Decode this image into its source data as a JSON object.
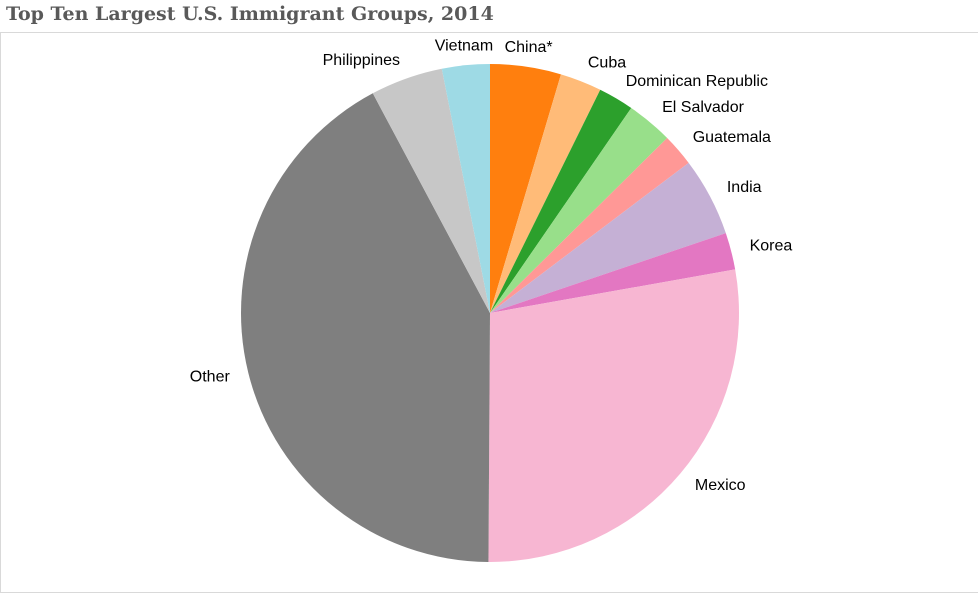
{
  "chart_data": {
    "type": "pie",
    "title": "Top Ten Largest U.S. Immigrant Groups, 2014",
    "start_angle_deg": 0,
    "direction": "clockwise",
    "slices": [
      {
        "label": "China*",
        "value": 4.6,
        "color": "#ff7f0e"
      },
      {
        "label": "Cuba",
        "value": 2.7,
        "color": "#ffbb78"
      },
      {
        "label": "Dominican Republic",
        "value": 2.3,
        "color": "#2ca02c"
      },
      {
        "label": "El Salvador",
        "value": 3.0,
        "color": "#98df8a"
      },
      {
        "label": "Guatemala",
        "value": 2.1,
        "color": "#ff9896"
      },
      {
        "label": "India",
        "value": 5.1,
        "color": "#c5b0d5"
      },
      {
        "label": "Korea",
        "value": 2.4,
        "color": "#e377c2"
      },
      {
        "label": "Mexico",
        "value": 27.9,
        "color": "#f7b6d2"
      },
      {
        "label": "Other",
        "value": 42.1,
        "color": "#7f7f7f"
      },
      {
        "label": "Philippines",
        "value": 4.7,
        "color": "#c7c7c7"
      },
      {
        "label": "Vietnam",
        "value": 3.1,
        "color": "#9edae5"
      }
    ]
  }
}
